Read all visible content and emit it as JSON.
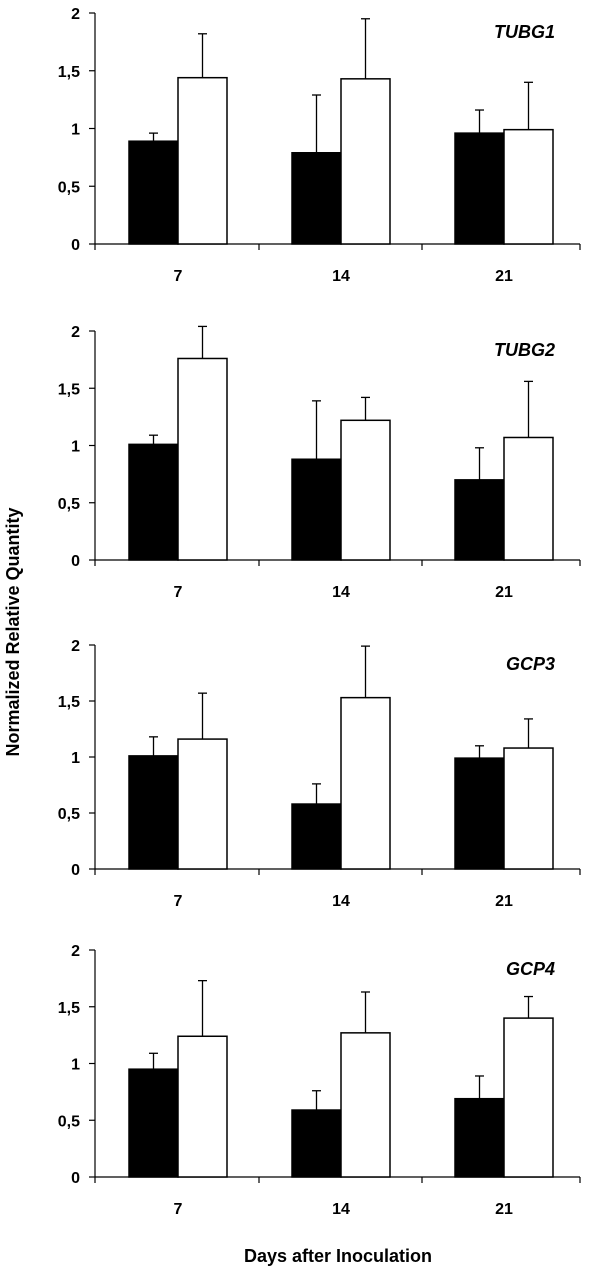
{
  "figure": {
    "ylabel": "Normalized Relative Quantity",
    "xlabel": "Days after Inoculation"
  },
  "chart_data": [
    {
      "type": "bar",
      "title": "TUBG1",
      "categories": [
        "7",
        "14",
        "21"
      ],
      "ylim": [
        0,
        2
      ],
      "yticks": [
        "0",
        "0,5",
        "1",
        "1,5",
        "2"
      ],
      "grid": false,
      "series": [
        {
          "color": "#000000",
          "values": [
            0.89,
            0.79,
            0.96
          ],
          "errors": [
            0.07,
            0.5,
            0.2
          ]
        },
        {
          "color": "#ffffff",
          "values": [
            1.44,
            1.43,
            0.99
          ],
          "errors": [
            0.38,
            0.52,
            0.41
          ]
        }
      ]
    },
    {
      "type": "bar",
      "title": "TUBG2",
      "categories": [
        "7",
        "14",
        "21"
      ],
      "ylim": [
        0,
        2
      ],
      "yticks": [
        "0",
        "0,5",
        "1",
        "1,5",
        "2"
      ],
      "grid": false,
      "series": [
        {
          "color": "#000000",
          "values": [
            1.01,
            0.88,
            0.7
          ],
          "errors": [
            0.08,
            0.51,
            0.28
          ]
        },
        {
          "color": "#ffffff",
          "values": [
            1.76,
            1.22,
            1.07
          ],
          "errors": [
            0.28,
            0.2,
            0.49
          ]
        }
      ]
    },
    {
      "type": "bar",
      "title": "GCP3",
      "categories": [
        "7",
        "14",
        "21"
      ],
      "ylim": [
        0,
        2
      ],
      "yticks": [
        "0",
        "0,5",
        "1",
        "1,5",
        "2"
      ],
      "grid": false,
      "series": [
        {
          "color": "#000000",
          "values": [
            1.01,
            0.58,
            0.99
          ],
          "errors": [
            0.17,
            0.18,
            0.11
          ]
        },
        {
          "color": "#ffffff",
          "values": [
            1.16,
            1.53,
            1.08
          ],
          "errors": [
            0.41,
            0.46,
            0.26
          ]
        }
      ]
    },
    {
      "type": "bar",
      "title": "GCP4",
      "categories": [
        "7",
        "14",
        "21"
      ],
      "ylim": [
        0,
        2
      ],
      "yticks": [
        "0",
        "0,5",
        "1",
        "1,5",
        "2"
      ],
      "grid": false,
      "series": [
        {
          "color": "#000000",
          "values": [
            0.95,
            0.59,
            0.69
          ],
          "errors": [
            0.14,
            0.17,
            0.2
          ]
        },
        {
          "color": "#ffffff",
          "values": [
            1.24,
            1.27,
            1.4
          ],
          "errors": [
            0.49,
            0.36,
            0.19
          ]
        }
      ]
    }
  ]
}
